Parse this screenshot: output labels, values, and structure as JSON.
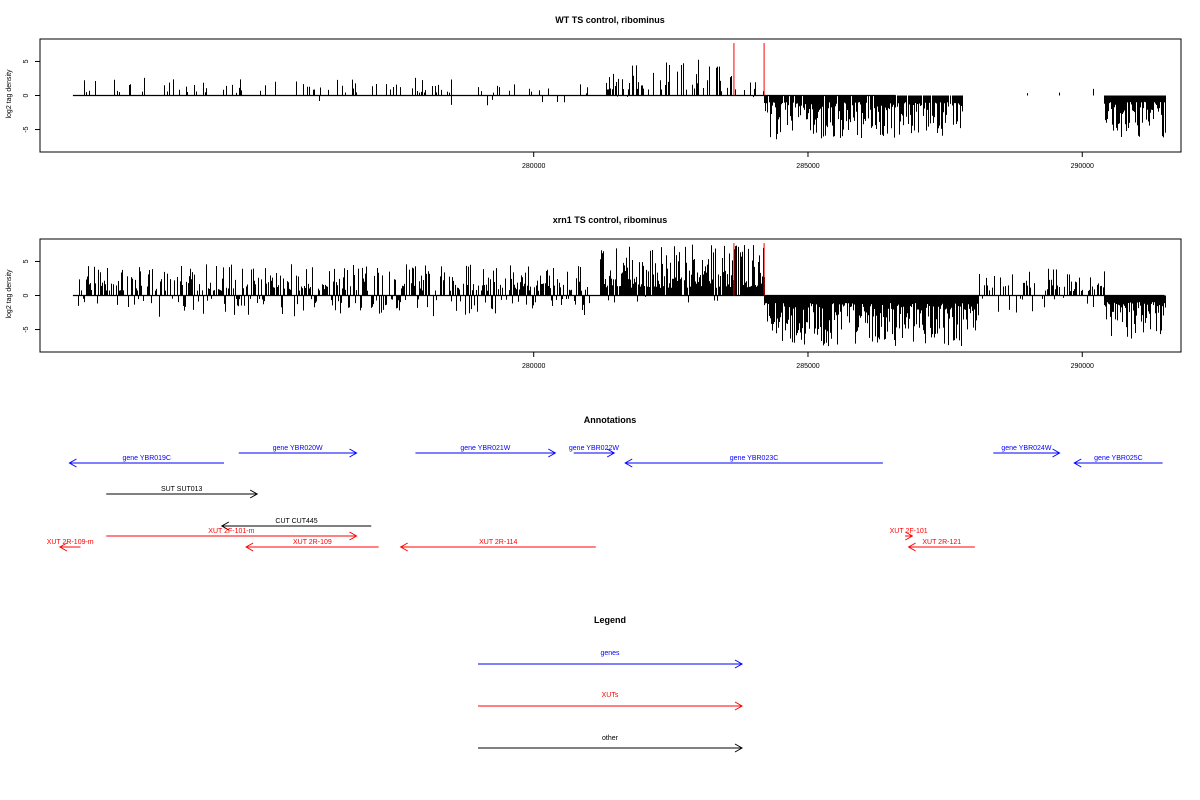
{
  "chart_data": [
    {
      "type": "bar",
      "title": "WT TS control, ribominus",
      "xlabel": "",
      "ylabel": "log2 tag density",
      "xlim": [
        271000,
        291800
      ],
      "ylim": [
        -8.3,
        8.3
      ],
      "xticks": [
        {
          "value": 280000,
          "label": "280000"
        },
        {
          "value": 285000,
          "label": "285000"
        },
        {
          "value": 290000,
          "label": "290000"
        }
      ],
      "yticks": [
        {
          "value": -5,
          "label": "-5"
        },
        {
          "value": 0,
          "label": "0"
        },
        {
          "value": 5,
          "label": "5"
        }
      ],
      "baseline_range": [
        271600,
        286600
      ],
      "marker_lines": [
        {
          "x": 283650,
          "ymin": 0,
          "ymax": 7.7,
          "color": "#ff0000"
        },
        {
          "x": 284200,
          "ymin": 0,
          "ymax": 7.7,
          "color": "#ff0000"
        }
      ],
      "profile_segments": [
        {
          "start": 271800,
          "end": 278500,
          "density": 0.16,
          "maxVal": 2.6,
          "minVal": -2.2,
          "negFrac": 0.05
        },
        {
          "start": 278500,
          "end": 281100,
          "density": 0.09,
          "maxVal": 1.8,
          "minVal": -2.4,
          "negFrac": 0.25
        },
        {
          "start": 281300,
          "end": 283400,
          "density": 0.45,
          "maxVal": 5.8,
          "minVal": -0.8,
          "negFrac": 0.02
        },
        {
          "start": 283400,
          "end": 284200,
          "density": 0.25,
          "maxVal": 4.2,
          "minVal": -1.2,
          "negFrac": 0.1
        },
        {
          "start": 284200,
          "end": 287800,
          "density": 0.95,
          "maxVal": 0.3,
          "minVal": -6.5,
          "negFrac": 1.0
        },
        {
          "start": 288300,
          "end": 290300,
          "density": 0.08,
          "maxVal": 2.2,
          "minVal": -1.2,
          "negFrac": 0.3
        },
        {
          "start": 290400,
          "end": 291500,
          "density": 1.0,
          "maxVal": 0.3,
          "minVal": -6.2,
          "negFrac": 1.0
        }
      ]
    },
    {
      "type": "bar",
      "title": "xrn1 TS control, ribominus",
      "xlabel": "",
      "ylabel": "log2 tag density",
      "xlim": [
        271000,
        291800
      ],
      "ylim": [
        -8.3,
        8.3
      ],
      "xticks": [
        {
          "value": 280000,
          "label": "280000"
        },
        {
          "value": 285000,
          "label": "285000"
        },
        {
          "value": 290000,
          "label": "290000"
        }
      ],
      "yticks": [
        {
          "value": -5,
          "label": "-5"
        },
        {
          "value": 0,
          "label": "0"
        },
        {
          "value": 5,
          "label": "5"
        }
      ],
      "baseline_range": [
        271600,
        291500
      ],
      "marker_lines": [
        {
          "x": 283650,
          "ymin": 0,
          "ymax": 7.7,
          "color": "#ff0000"
        },
        {
          "x": 284200,
          "ymin": 0,
          "ymax": 7.7,
          "color": "#ff0000"
        }
      ],
      "profile_segments": [
        {
          "start": 271700,
          "end": 281000,
          "density": 0.75,
          "maxVal": 4.6,
          "minVal": -3.2,
          "negFrac": 0.3
        },
        {
          "start": 281200,
          "end": 284200,
          "density": 0.95,
          "maxVal": 7.5,
          "minVal": -1.2,
          "negFrac": 0.05
        },
        {
          "start": 284200,
          "end": 288100,
          "density": 1.0,
          "maxVal": 0.3,
          "minVal": -7.5,
          "negFrac": 1.0
        },
        {
          "start": 288100,
          "end": 289300,
          "density": 0.6,
          "maxVal": 3.6,
          "minVal": -3.0,
          "negFrac": 0.45
        },
        {
          "start": 289300,
          "end": 290400,
          "density": 0.65,
          "maxVal": 4.2,
          "minVal": -1.8,
          "negFrac": 0.15
        },
        {
          "start": 290400,
          "end": 291500,
          "density": 1.0,
          "maxVal": 0.3,
          "minVal": -6.5,
          "negFrac": 1.0
        }
      ]
    },
    {
      "type": "annotation-track",
      "title": "Annotations",
      "colors": {
        "genes": "#0000ff",
        "XUTs": "#ff0000",
        "other": "#000000"
      },
      "features": [
        {
          "label": "gene YBR019C",
          "category": "genes",
          "start": 271200,
          "end": 273300,
          "strand": "-",
          "row": 1
        },
        {
          "label": "gene YBR020W",
          "category": "genes",
          "start": 273500,
          "end": 275100,
          "strand": "+",
          "row": 0
        },
        {
          "label": "gene YBR021W",
          "category": "genes",
          "start": 275900,
          "end": 277800,
          "strand": "+",
          "row": 0
        },
        {
          "label": "gene YBR022W",
          "category": "genes",
          "start": 278050,
          "end": 278600,
          "strand": "+",
          "row": 0
        },
        {
          "label": "gene YBR023C",
          "category": "genes",
          "start": 278750,
          "end": 282250,
          "strand": "-",
          "row": 1
        },
        {
          "label": "gene YBR024W",
          "category": "genes",
          "start": 283750,
          "end": 284650,
          "strand": "+",
          "row": 0
        },
        {
          "label": "gene YBR025C",
          "category": "genes",
          "start": 284850,
          "end": 286050,
          "strand": "-",
          "row": 1
        },
        {
          "label": "SUT SUT013",
          "category": "other",
          "start": 271700,
          "end": 273750,
          "strand": "+",
          "row": 2
        },
        {
          "label": "CUT CUT445",
          "category": "other",
          "start": 273270,
          "end": 275300,
          "strand": "-",
          "row": 3
        },
        {
          "label": "XUT 2F-101-m",
          "category": "XUTs",
          "start": 271700,
          "end": 275100,
          "strand": "+",
          "row": 4
        },
        {
          "label": "XUT 2R-109-m",
          "category": "XUTs",
          "start": 271070,
          "end": 271350,
          "strand": "-",
          "row": 5
        },
        {
          "label": "XUT 2R-109",
          "category": "XUTs",
          "start": 273600,
          "end": 275400,
          "strand": "-",
          "row": 5
        },
        {
          "label": "XUT 2R-114",
          "category": "XUTs",
          "start": 275700,
          "end": 278350,
          "strand": "-",
          "row": 5
        },
        {
          "label": "XUT 2F-101",
          "category": "XUTs",
          "start": 282550,
          "end": 282650,
          "strand": "+",
          "row": 4
        },
        {
          "label": "XUT 2R-121",
          "category": "XUTs",
          "start": 282600,
          "end": 283500,
          "strand": "-",
          "row": 5
        }
      ]
    }
  ],
  "legend": {
    "title": "Legend",
    "items": [
      {
        "label": "genes",
        "color": "#0000ff"
      },
      {
        "label": "XUTs",
        "color": "#ff0000"
      },
      {
        "label": "other",
        "color": "#000000"
      }
    ]
  }
}
